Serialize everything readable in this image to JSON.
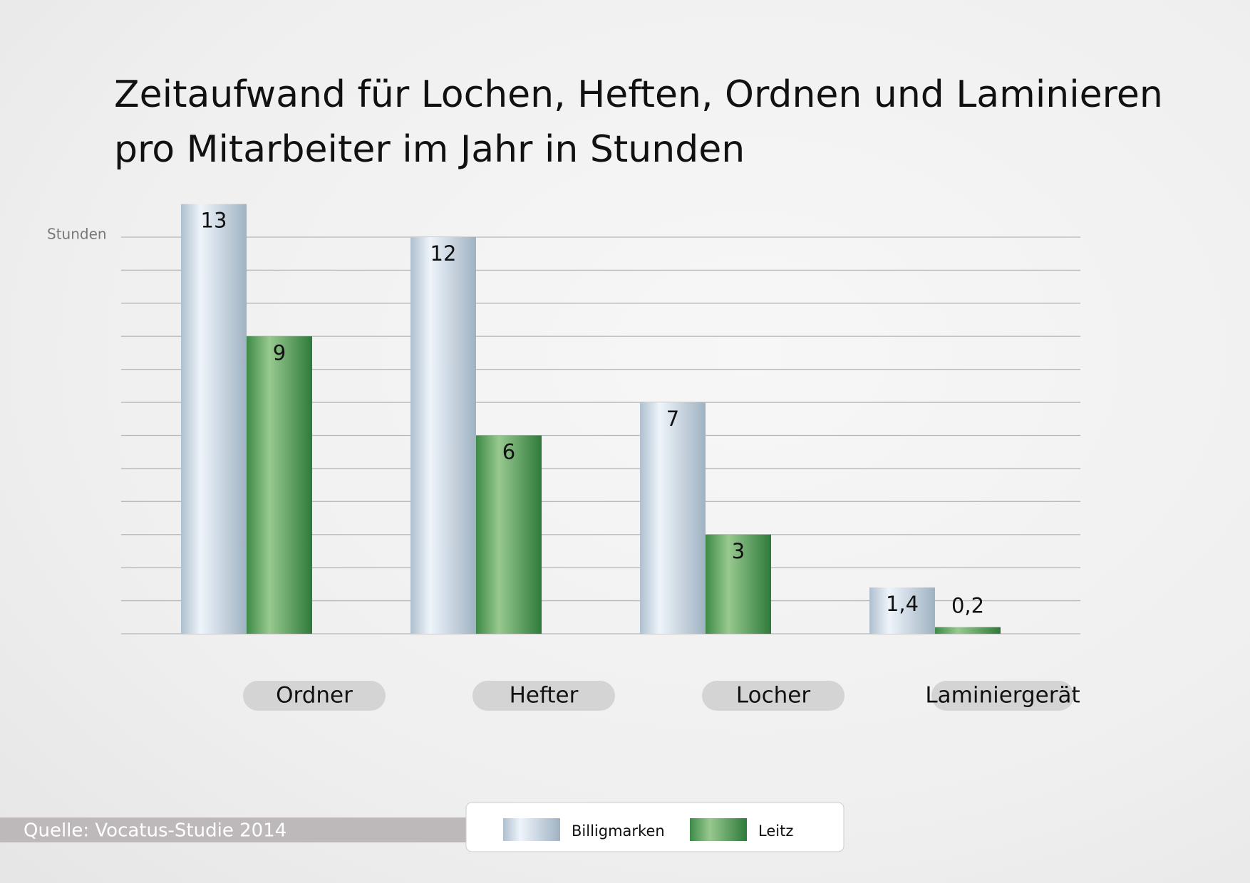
{
  "chart_data": {
    "type": "bar",
    "title": "Zeitaufwand für Lochen, Heften, Ordnen und Laminieren",
    "subtitle": "pro Mitarbeiter im Jahr in Stunden",
    "y_label": "Stunden",
    "source": "Quelle: Vocatus-Studie 2014",
    "categories": [
      "Ordner",
      "Hefter",
      "Locher",
      "Laminiergerät"
    ],
    "series": [
      {
        "name": "Billigmarken",
        "color": "#b9cad8",
        "values": [
          13,
          12,
          7,
          1.4
        ],
        "value_labels": [
          "13",
          "12",
          "7",
          "1,4"
        ]
      },
      {
        "name": "Leitz",
        "color": "#4f9a58",
        "values": [
          9,
          6,
          3,
          0.2
        ],
        "value_labels": [
          "9",
          "6",
          "3",
          "0,2"
        ]
      }
    ],
    "ylim": [
      0,
      12
    ],
    "yticks": [
      0,
      1,
      2,
      3,
      4,
      5,
      6,
      7,
      8,
      9,
      10,
      11,
      12
    ],
    "grid": true
  }
}
